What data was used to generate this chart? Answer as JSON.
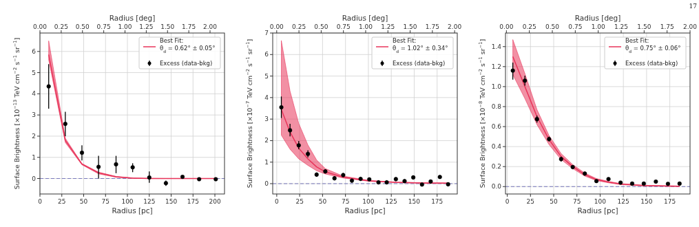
{
  "chart_data": [
    {
      "type": "line",
      "xlabel": "Radius [pc]",
      "x2label": "Radius [deg]",
      "ylabel": "Surface Brightness [×10$^{−13}$ TeV cm$^{−2}$ s$^{−1}$ sr$^{−1}$]",
      "xlim": [
        0,
        211
      ],
      "xticks": [
        0,
        25,
        50,
        75,
        100,
        125,
        150,
        175,
        200
      ],
      "x2lim": [
        0,
        2.17
      ],
      "x2ticks": [
        {
          "value": 0,
          "label": "0.00"
        },
        {
          "value": 0.25,
          "label": "0.25"
        },
        {
          "value": 0.5,
          "label": "0.50"
        },
        {
          "value": 0.75,
          "label": "0.75"
        },
        {
          "value": 1,
          "label": "1.00"
        },
        {
          "value": 1.25,
          "label": "1.25"
        },
        {
          "value": 1.5,
          "label": "1.50"
        },
        {
          "value": 1.75,
          "label": "1.75"
        },
        {
          "value": 2,
          "label": "2.00"
        }
      ],
      "ylim": [
        -0.73,
        6.87
      ],
      "yticks": [
        0,
        1,
        2,
        3,
        4,
        5,
        6
      ],
      "grid": true,
      "legend": "top right",
      "ref_lines": [
        {
          "axis": "y",
          "value": 0,
          "color": "#7777bb",
          "line_style": "dashed"
        }
      ],
      "series": [
        {
          "type": "line",
          "name": "Best Fit:\nθ$_{d}$ = 0.62° ± 0.05°",
          "color": "#e8345a",
          "marker": "none",
          "x": [
            10,
            29,
            48,
            67,
            87,
            106,
            125,
            144,
            163,
            182,
            201
          ],
          "values": [
            5.85,
            1.8,
            0.68,
            0.27,
            0.08,
            0.02,
            0,
            0,
            0,
            0,
            0
          ],
          "lower": [
            5.6,
            1.7,
            0.65,
            0.22,
            0.06,
            0.01,
            0,
            0,
            0,
            0,
            0
          ],
          "upper": [
            6.5,
            1.9,
            0.71,
            0.3,
            0.1,
            0.03,
            0.01,
            0,
            0,
            0,
            0
          ]
        },
        {
          "type": "scatter",
          "name": "Excess (data-bkg)",
          "color": "#000000",
          "marker": "circle",
          "x": [
            10,
            29,
            48,
            67,
            87,
            106,
            125,
            144,
            163,
            182,
            201
          ],
          "values": [
            4.35,
            2.58,
            1.22,
            0.55,
            0.67,
            0.53,
            0.05,
            -0.22,
            0.08,
            -0.03,
            -0.03
          ],
          "errors": [
            [
              3.3,
              5.4
            ],
            [
              2.0,
              3.15
            ],
            [
              0.85,
              1.57
            ],
            [
              0,
              1.07
            ],
            [
              0.25,
              1.07
            ],
            [
              0.3,
              0.72
            ],
            [
              -0.2,
              0.33
            ],
            [
              -0.35,
              -0.1
            ],
            [
              0.03,
              0.13
            ],
            [
              -0.07,
              0.01
            ],
            [
              -0.07,
              0.01
            ]
          ]
        }
      ]
    },
    {
      "type": "line",
      "xlabel": "Radius [pc]",
      "x2label": "Radius [deg]",
      "ylabel": "Surface Brightness [×10$^{−7}$ TeV cm$^{−2}$ s$^{−1}$ sr$^{−1}$]",
      "xlim": [
        -4.4,
        197
      ],
      "xticks": [
        0,
        25,
        50,
        75,
        100,
        125,
        150,
        175
      ],
      "x2lim": [
        -0.045,
        2.03
      ],
      "x2ticks": [
        {
          "value": 0,
          "label": "0.00"
        },
        {
          "value": 0.25,
          "label": "0.25"
        },
        {
          "value": 0.5,
          "label": "0.50"
        },
        {
          "value": 0.75,
          "label": "0.75"
        },
        {
          "value": 1,
          "label": "1.00"
        },
        {
          "value": 1.25,
          "label": "1.25"
        },
        {
          "value": 1.5,
          "label": "1.50"
        },
        {
          "value": 1.75,
          "label": "1.75"
        },
        {
          "value": 2,
          "label": "2.00"
        }
      ],
      "ylim": [
        -0.48,
        7
      ],
      "yticks": [
        0,
        1,
        2,
        3,
        4,
        5,
        6,
        7
      ],
      "grid": true,
      "legend": "top right",
      "ref_lines": [
        {
          "axis": "y",
          "value": 0,
          "color": "#7777bb",
          "line_style": "dashed"
        }
      ],
      "series": [
        {
          "type": "line",
          "name": "Best Fit:\nθ$_{d}$ = 1.02° ± 0.34°",
          "color": "#e8345a",
          "marker": "none",
          "x": [
            5,
            14.5,
            24,
            34,
            43.5,
            53,
            72.5,
            101,
            130,
            158.5,
            187
          ],
          "values": [
            3.45,
            2.4,
            1.65,
            1.15,
            0.78,
            0.55,
            0.3,
            0.13,
            0.06,
            0.03,
            0.02
          ],
          "lower": [
            2.25,
            1.6,
            1.15,
            0.85,
            0.6,
            0.45,
            0.26,
            0.11,
            0.05,
            0.02,
            0.01
          ],
          "upper": [
            6.65,
            4.3,
            2.8,
            1.8,
            1.1,
            0.7,
            0.35,
            0.15,
            0.07,
            0.04,
            0.03
          ]
        },
        {
          "type": "scatter",
          "name": "Excess (data-bkg)",
          "color": "#000000",
          "marker": "circle",
          "x": [
            5,
            14.5,
            24,
            34,
            43.5,
            53,
            63,
            72.5,
            82,
            91.5,
            101,
            111,
            120,
            130,
            139.5,
            149,
            158.5,
            168,
            178,
            187
          ],
          "values": [
            3.55,
            2.48,
            1.78,
            1.38,
            0.42,
            0.57,
            0.25,
            0.4,
            0.14,
            0.22,
            0.2,
            0.06,
            0.06,
            0.21,
            0.12,
            0.29,
            -0.04,
            0.1,
            0.31,
            -0.03
          ],
          "errors": [
            [
              3.05,
              4.05
            ],
            [
              2.2,
              2.78
            ],
            [
              1.6,
              1.98
            ],
            [
              1.22,
              1.55
            ],
            [
              0.32,
              0.52
            ],
            [
              0.47,
              0.67
            ],
            [
              0.15,
              0.35
            ],
            [
              0.3,
              0.5
            ],
            [
              0.05,
              0.23
            ],
            [
              0.13,
              0.31
            ],
            [
              0.11,
              0.29
            ],
            [
              -0.03,
              0.15
            ],
            [
              -0.03,
              0.15
            ],
            [
              0.12,
              0.3
            ],
            [
              0.03,
              0.21
            ],
            [
              0.2,
              0.38
            ],
            [
              -0.12,
              0.04
            ],
            [
              0.01,
              0.19
            ],
            [
              0.22,
              0.4
            ],
            [
              -0.11,
              0.05
            ]
          ]
        }
      ]
    },
    {
      "type": "line",
      "xlabel": "Radius [pc]",
      "x2label": "Radius [deg]",
      "ylabel": "Surface Brightness [×10$^{−8}$ TeV cm$^{−2}$ s$^{−1}$ sr$^{−1}$]",
      "xlim": [
        -1.9,
        196.8
      ],
      "xticks": [
        0,
        25,
        50,
        75,
        100,
        125,
        150,
        175
      ],
      "x2lim": [
        -0.01,
        2.0
      ],
      "x2ticks": [
        {
          "value": 0,
          "label": "0.00"
        },
        {
          "value": 0.25,
          "label": "0.25"
        },
        {
          "value": 0.5,
          "label": "0.50"
        },
        {
          "value": 0.75,
          "label": "0.75"
        },
        {
          "value": 1,
          "label": "1.00"
        },
        {
          "value": 1.25,
          "label": "1.25"
        },
        {
          "value": 1.5,
          "label": "1.50"
        },
        {
          "value": 1.75,
          "label": "1.75"
        },
        {
          "value": 2,
          "label": "2.00"
        }
      ],
      "ylim": [
        -0.074,
        1.536
      ],
      "yticks": [
        {
          "value": 0,
          "label": "0.0"
        },
        {
          "value": 0.2,
          "label": "0.2"
        },
        {
          "value": 0.4,
          "label": "0.4"
        },
        {
          "value": 0.6,
          "label": "0.6"
        },
        {
          "value": 0.8,
          "label": "0.8"
        },
        {
          "value": 1,
          "label": "1.0"
        },
        {
          "value": 1.2,
          "label": "1.2"
        },
        {
          "value": 1.4,
          "label": "1.4"
        }
      ],
      "grid": true,
      "legend": "top right",
      "annotations": [
        "17"
      ],
      "ref_lines": [
        {
          "axis": "y",
          "value": 0,
          "color": "#7777bb",
          "line_style": "dashed"
        }
      ],
      "series": [
        {
          "type": "line",
          "name": "Best Fit:\nθ$_{d}$ = 0.75° ± 0.06°",
          "color": "#e8345a",
          "marker": "none",
          "x": [
            6,
            19,
            32,
            45,
            58,
            70.5,
            83.5,
            96,
            109,
            122,
            147,
            185.5
          ],
          "values": [
            1.3,
            1.0,
            0.7,
            0.47,
            0.3,
            0.2,
            0.12,
            0.07,
            0.045,
            0.025,
            0.01,
            0.003
          ],
          "lower": [
            1.12,
            0.88,
            0.62,
            0.42,
            0.27,
            0.18,
            0.105,
            0.06,
            0.038,
            0.02,
            0.007,
            0.001
          ],
          "upper": [
            1.47,
            1.13,
            0.77,
            0.51,
            0.33,
            0.22,
            0.135,
            0.08,
            0.052,
            0.03,
            0.013,
            0.005
          ]
        },
        {
          "type": "scatter",
          "name": "Excess (data-bkg)",
          "color": "#000000",
          "marker": "circle",
          "x": [
            6,
            19,
            32,
            45,
            58,
            70.5,
            83.5,
            96,
            109,
            122,
            134.5,
            147,
            160,
            173,
            185.5
          ],
          "values": [
            1.16,
            1.06,
            0.675,
            0.475,
            0.275,
            0.195,
            0.13,
            0.055,
            0.075,
            0.04,
            0.03,
            0.03,
            0.05,
            0.028,
            0.03
          ],
          "errors": [
            [
              1.07,
              1.24
            ],
            [
              1.01,
              1.11
            ],
            [
              0.64,
              0.71
            ],
            [
              0.45,
              0.5
            ],
            [
              0.25,
              0.3
            ],
            [
              0.175,
              0.215
            ],
            [
              0.11,
              0.15
            ],
            [
              0.04,
              0.07
            ],
            [
              0.06,
              0.09
            ],
            [
              0.027,
              0.053
            ],
            [
              0.018,
              0.042
            ],
            [
              0.018,
              0.042
            ],
            [
              0.037,
              0.063
            ],
            [
              0.016,
              0.04
            ],
            [
              0.018,
              0.042
            ]
          ]
        }
      ]
    }
  ]
}
